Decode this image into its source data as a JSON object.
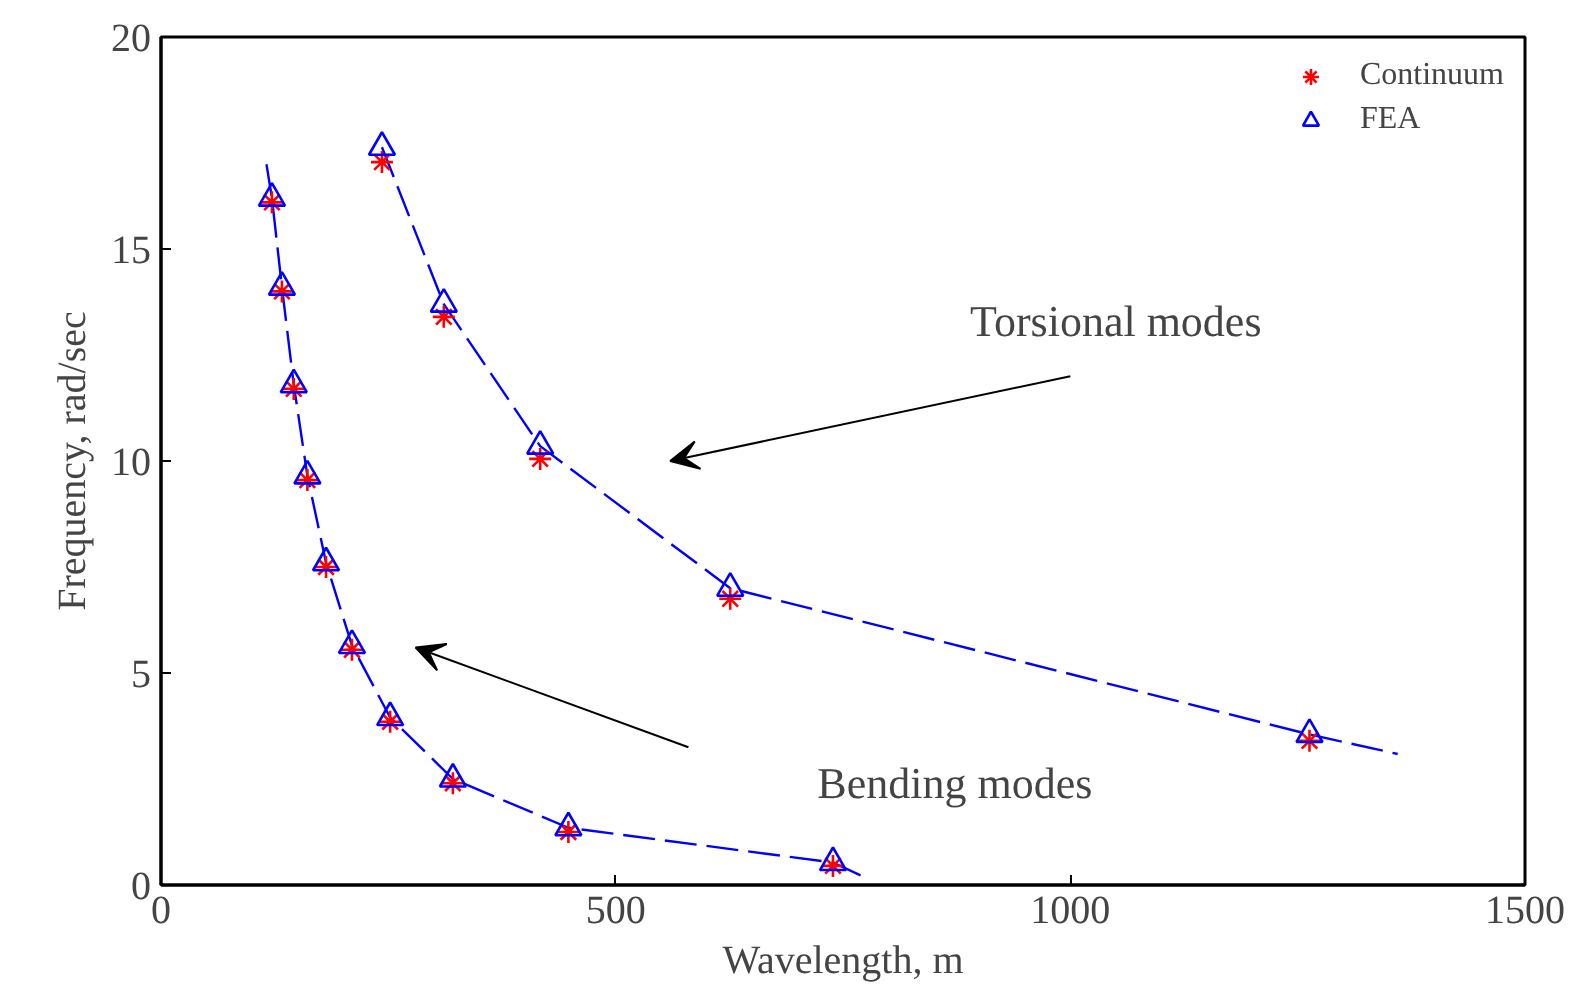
{
  "chart_data": {
    "type": "scatter",
    "xlabel": "Wavelength, m",
    "ylabel": "Frequency, rad/sec",
    "xlim": [
      0,
      1500
    ],
    "xticks": [
      0,
      500,
      1000,
      1500
    ],
    "ylim": [
      0,
      20
    ],
    "yticks": [
      0,
      5,
      10,
      15,
      20
    ],
    "grid": false,
    "legend": "top right",
    "annotations": [
      "Torsional modes",
      "Bending modes"
    ],
    "series": [
      {
        "type": "line",
        "color": "#0000ff",
        "line_style": "dashed",
        "marker": "none",
        "x": [
          116,
          122,
          133,
          146,
          161,
          181.5,
          210,
          252,
          321,
          448,
          739,
          771
        ],
        "values": [
          17.0,
          16.2,
          14.1,
          11.8,
          9.65,
          7.6,
          5.65,
          3.95,
          2.5,
          1.35,
          0.53,
          0.21
        ]
      },
      {
        "type": "line",
        "color": "#0000ff",
        "line_style": "dashed",
        "marker": "none",
        "x": [
          243,
          311,
          417,
          626,
          1263,
          1360
        ],
        "values": [
          17.4,
          13.7,
          10.35,
          7.0,
          3.55,
          3.09
        ]
      },
      {
        "name": "Continuum",
        "color": "#ff0000",
        "marker": "cross",
        "x": [
          122,
          133,
          146,
          161,
          181.5,
          210,
          252,
          321,
          448,
          739,
          243,
          311,
          417,
          626,
          1263
        ],
        "values": [
          16.1,
          14.0,
          11.7,
          9.55,
          7.5,
          5.55,
          3.85,
          2.4,
          1.25,
          0.45,
          17.05,
          13.4,
          10.05,
          6.75,
          3.4
        ]
      },
      {
        "name": "FEA",
        "color": "#0000ff",
        "marker": "triangle",
        "x": [
          122,
          133,
          146,
          161,
          181.5,
          210,
          252,
          321,
          448,
          739,
          243,
          311,
          417,
          626,
          1263
        ],
        "values": [
          16.2,
          14.1,
          11.8,
          9.65,
          7.6,
          5.65,
          3.95,
          2.5,
          1.35,
          0.53,
          17.4,
          13.7,
          10.35,
          7.0,
          3.55
        ]
      }
    ]
  }
}
